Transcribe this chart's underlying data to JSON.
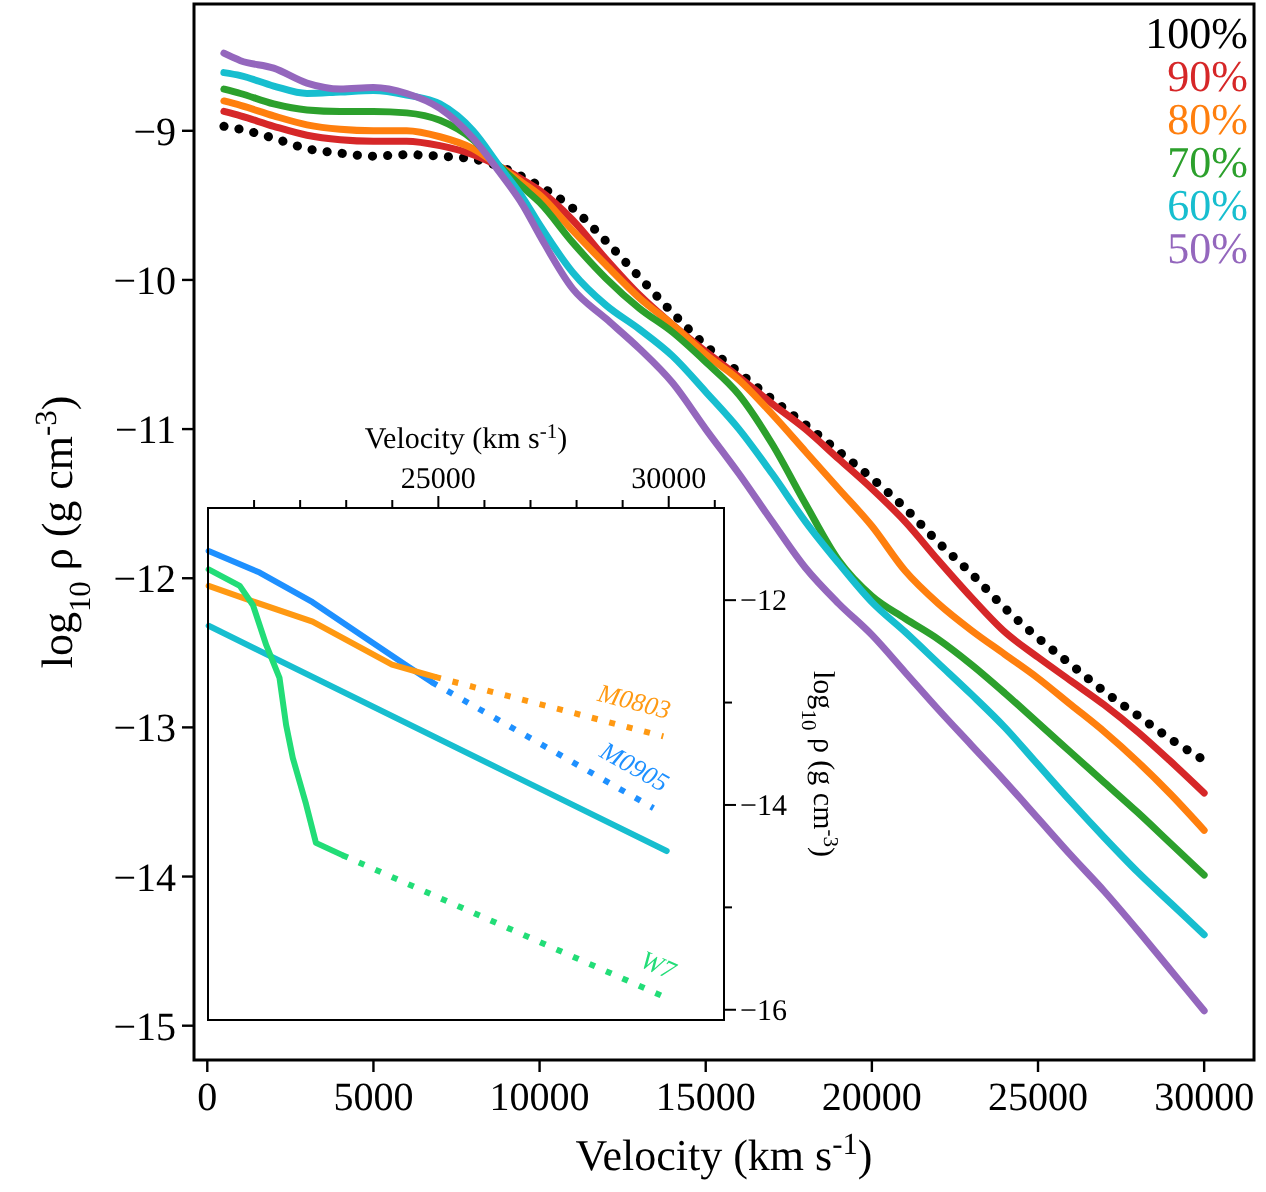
{
  "chart_data": [
    {
      "type": "line",
      "xlabel": "Velocity (km s$^{-1}$)",
      "ylabel": "log$_{10}$ ρ (g cm$^{-3}$)",
      "xlim": [
        -400,
        31500
      ],
      "ylim": [
        -15.23,
        -8.15
      ],
      "xticks": [
        0,
        5000,
        10000,
        15000,
        20000,
        25000,
        30000
      ],
      "yticks": [
        {
          "value": -15,
          "label": "−15"
        },
        {
          "value": -14,
          "label": "−14"
        },
        {
          "value": -13,
          "label": "−13"
        },
        {
          "value": -12,
          "label": "−12"
        },
        {
          "value": -11,
          "label": "−11"
        },
        {
          "value": -10,
          "label": "−10"
        },
        {
          "value": -9,
          "label": "−9"
        }
      ],
      "legend": "top right",
      "x": [
        500,
        1000,
        2000,
        3000,
        4000,
        5000,
        6000,
        7000,
        8000,
        8800,
        9500,
        10000,
        11000,
        12000,
        13000,
        14000,
        15000,
        16000,
        17000,
        18000,
        19000,
        20000,
        21000,
        22000,
        23000,
        24000,
        25000,
        26000,
        27000,
        28000,
        29000,
        30000
      ],
      "series": [
        {
          "name": "100%",
          "color": "#000000",
          "line_style": "dotted",
          "values": [
            -8.97,
            -8.99,
            -9.05,
            -9.12,
            -9.15,
            -9.17,
            -9.16,
            -9.17,
            -9.19,
            -9.24,
            -9.31,
            -9.37,
            -9.52,
            -9.74,
            -9.98,
            -10.22,
            -10.44,
            -10.62,
            -10.8,
            -10.97,
            -11.15,
            -11.33,
            -11.53,
            -11.76,
            -11.97,
            -12.2,
            -12.4,
            -12.58,
            -12.76,
            -12.92,
            -13.08,
            -13.22
          ]
        },
        {
          "name": "90%",
          "color": "#d62728",
          "line_style": "solid",
          "values": [
            -8.87,
            -8.9,
            -8.97,
            -9.03,
            -9.06,
            -9.07,
            -9.07,
            -9.1,
            -9.16,
            -9.24,
            -9.33,
            -9.4,
            -9.6,
            -9.86,
            -10.1,
            -10.3,
            -10.48,
            -10.65,
            -10.83,
            -11.0,
            -11.2,
            -11.4,
            -11.62,
            -11.88,
            -12.13,
            -12.36,
            -12.53,
            -12.69,
            -12.85,
            -13.03,
            -13.23,
            -13.44
          ]
        },
        {
          "name": "80%",
          "color": "#ff7f0e",
          "line_style": "solid",
          "values": [
            -8.8,
            -8.83,
            -8.9,
            -8.96,
            -8.99,
            -9.0,
            -9.0,
            -9.04,
            -9.12,
            -9.24,
            -9.35,
            -9.43,
            -9.67,
            -9.9,
            -10.12,
            -10.3,
            -10.5,
            -10.67,
            -10.9,
            -11.15,
            -11.4,
            -11.65,
            -11.95,
            -12.17,
            -12.35,
            -12.51,
            -12.67,
            -12.85,
            -13.03,
            -13.23,
            -13.45,
            -13.69
          ]
        },
        {
          "name": "70%",
          "color": "#2ca02c",
          "line_style": "solid",
          "values": [
            -8.72,
            -8.75,
            -8.82,
            -8.86,
            -8.87,
            -8.87,
            -8.88,
            -8.93,
            -9.06,
            -9.24,
            -9.38,
            -9.48,
            -9.75,
            -9.99,
            -10.19,
            -10.35,
            -10.55,
            -10.77,
            -11.1,
            -11.5,
            -11.88,
            -12.12,
            -12.27,
            -12.41,
            -12.58,
            -12.77,
            -12.97,
            -13.17,
            -13.37,
            -13.57,
            -13.78,
            -13.99
          ]
        },
        {
          "name": "60%",
          "color": "#17becf",
          "line_style": "solid",
          "values": [
            -8.61,
            -8.63,
            -8.7,
            -8.75,
            -8.74,
            -8.73,
            -8.76,
            -8.82,
            -9.0,
            -9.24,
            -9.45,
            -9.63,
            -9.95,
            -10.17,
            -10.33,
            -10.51,
            -10.75,
            -11.0,
            -11.3,
            -11.62,
            -11.9,
            -12.16,
            -12.36,
            -12.57,
            -12.78,
            -13.0,
            -13.25,
            -13.5,
            -13.74,
            -13.97,
            -14.18,
            -14.39
          ]
        },
        {
          "name": "50%",
          "color": "#9467bd",
          "line_style": "solid",
          "values": [
            -8.48,
            -8.53,
            -8.58,
            -8.68,
            -8.72,
            -8.71,
            -8.75,
            -8.85,
            -9.05,
            -9.28,
            -9.5,
            -9.7,
            -10.06,
            -10.26,
            -10.46,
            -10.69,
            -11.0,
            -11.3,
            -11.62,
            -11.93,
            -12.17,
            -12.38,
            -12.63,
            -12.88,
            -13.12,
            -13.36,
            -13.61,
            -13.86,
            -14.1,
            -14.36,
            -14.63,
            -14.9
          ]
        }
      ]
    },
    {
      "type": "line",
      "xlabel": "Velocity (km s$^{-1}$)",
      "ylabel": "log$_{10}$ ρ (g cm$^{-3}$)",
      "xlim": [
        20000,
        31200
      ],
      "xticks": [
        {
          "value": 21000,
          "label": null
        },
        {
          "value": 22000,
          "label": null
        },
        {
          "value": 23000,
          "label": null
        },
        {
          "value": 24000,
          "label": null
        },
        25000,
        {
          "value": 26000,
          "label": null
        },
        {
          "value": 27000,
          "label": null
        },
        {
          "value": 28000,
          "label": null
        },
        {
          "value": 29000,
          "label": null
        },
        30000,
        {
          "value": 31000,
          "label": null
        }
      ],
      "ylim": [
        -16.1,
        -11.1
      ],
      "yticks": [
        {
          "value": -16,
          "label": "−16"
        },
        {
          "value": -15,
          "label": null
        },
        {
          "value": -14,
          "label": "−14"
        },
        {
          "value": -13,
          "label": null
        },
        {
          "value": -12,
          "label": "−12"
        }
      ],
      "series": [
        {
          "color": "#17becf",
          "line_style": "solid",
          "x": [
            20014,
            29956
          ],
          "values": [
            -12.25,
            -14.45
          ]
        },
        {
          "color": "#1e90ff",
          "line_style": "solid",
          "x": [
            20014,
            21121,
            22270,
            23420,
            24284,
            24856
          ],
          "values": [
            -11.52,
            -11.73,
            -12.02,
            -12.37,
            -12.63,
            -12.8
          ]
        },
        {
          "name": "M0905",
          "color": "#1e90ff",
          "line_style": "dotted",
          "x": [
            24856,
            29668
          ],
          "values": [
            -12.8,
            -14.03
          ]
        },
        {
          "color": "#ff9912",
          "line_style": "solid",
          "x": [
            20014,
            20834,
            22270,
            23994,
            24928
          ],
          "values": [
            -11.86,
            -11.99,
            -12.21,
            -12.63,
            -12.75
          ]
        },
        {
          "name": "M0803",
          "color": "#ff9912",
          "line_style": "dotted",
          "x": [
            24928,
            29883
          ],
          "values": [
            -12.75,
            -13.33
          ]
        },
        {
          "color": "#22dd77",
          "line_style": "solid",
          "x": [
            20014,
            20690,
            20977,
            21265,
            21552,
            21696,
            21840,
            22127,
            22342,
            22917
          ],
          "values": [
            -11.7,
            -11.86,
            -12.05,
            -12.44,
            -12.76,
            -13.22,
            -13.54,
            -13.99,
            -14.37,
            -14.49
          ]
        },
        {
          "name": "W7",
          "color": "#22dd77",
          "line_style": "dotted",
          "x": [
            22917,
            29883
          ],
          "values": [
            -14.49,
            -15.87
          ]
        }
      ]
    }
  ]
}
